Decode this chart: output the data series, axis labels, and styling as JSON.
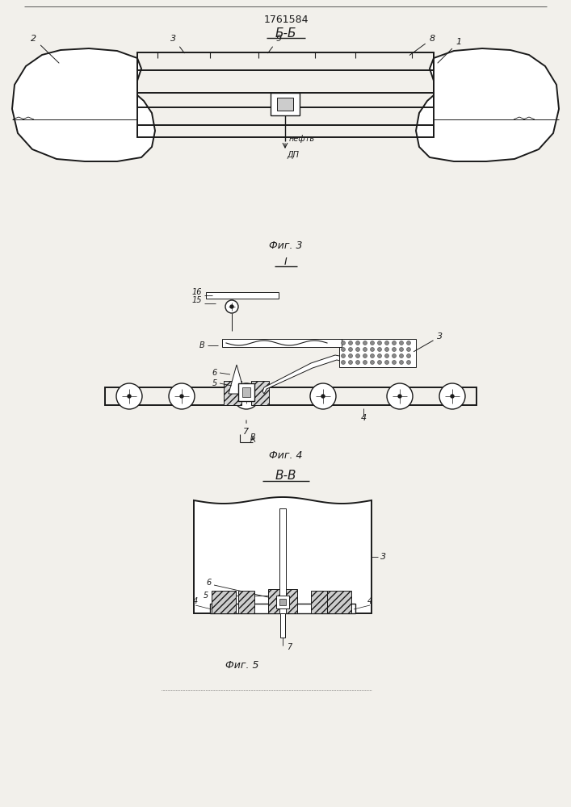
{
  "patent_number": "1761584",
  "bg_color": "#f2f0eb",
  "line_color": "#1a1a1a",
  "fig3_label": "Б-Б",
  "fig4_label": "I",
  "fig5_label": "В-В",
  "caption3": "Фиг. 3",
  "caption4": "Фиг. 4",
  "caption5": "Фиг. 5"
}
